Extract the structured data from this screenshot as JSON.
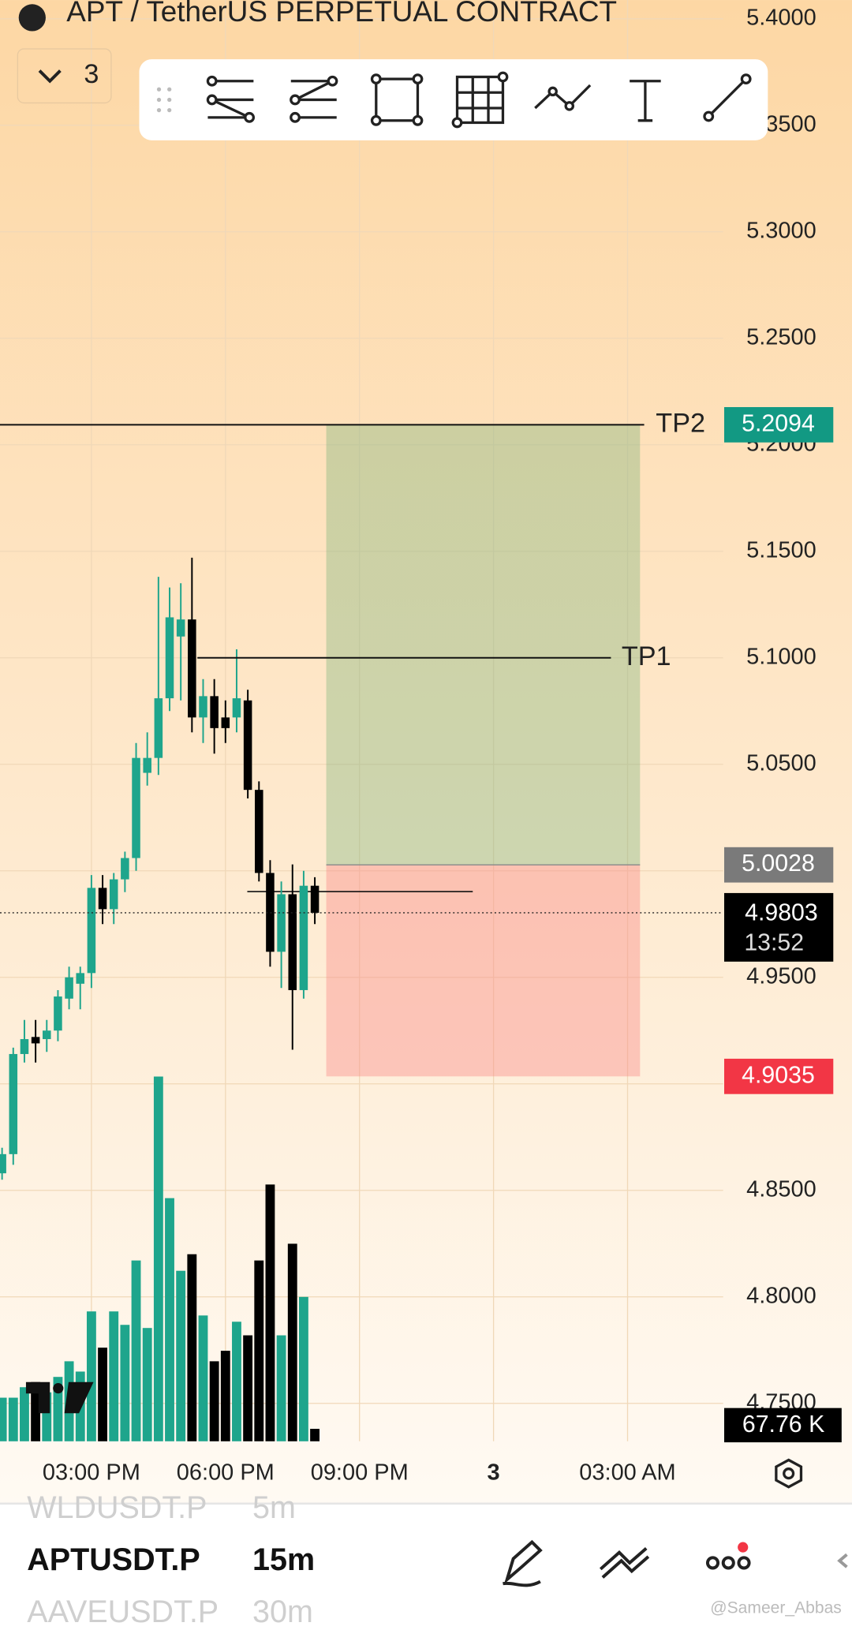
{
  "header": {
    "title": "APT / TetherUS PERPETUAL CONTRACT",
    "layout_count": "3"
  },
  "chart_data": {
    "type": "candlestick",
    "open": [
      4.858,
      4.867,
      4.914,
      4.922,
      4.921,
      4.925,
      4.94,
      4.947,
      4.952,
      4.992,
      4.982,
      4.996,
      5.006,
      5.046,
      5.053,
      5.081,
      5.11,
      5.118,
      5.072,
      5.082,
      5.072,
      5.072,
      5.08,
      5.038,
      4.999,
      4.962,
      4.989,
      4.944,
      4.993
    ],
    "high": [
      4.87,
      4.917,
      4.93,
      4.93,
      4.93,
      4.944,
      4.955,
      4.955,
      4.998,
      4.998,
      4.999,
      5.009,
      5.06,
      5.065,
      5.138,
      5.133,
      5.135,
      5.147,
      5.09,
      5.09,
      5.08,
      5.104,
      5.085,
      5.042,
      5.005,
      4.995,
      5.003,
      5.0,
      4.997
    ],
    "low": [
      4.855,
      4.862,
      4.91,
      4.91,
      4.915,
      4.92,
      4.935,
      4.935,
      4.945,
      4.975,
      4.975,
      4.99,
      5.0,
      5.04,
      5.045,
      5.075,
      5.08,
      5.065,
      5.06,
      5.055,
      5.06,
      5.065,
      5.034,
      4.995,
      4.955,
      4.945,
      4.916,
      4.94,
      4.975
    ],
    "close": [
      4.867,
      4.914,
      4.921,
      4.919,
      4.925,
      4.941,
      4.95,
      4.952,
      4.992,
      4.982,
      4.996,
      5.006,
      5.053,
      5.053,
      5.081,
      5.119,
      5.118,
      5.072,
      5.082,
      5.067,
      5.067,
      5.081,
      5.038,
      4.999,
      4.962,
      4.989,
      4.944,
      4.993,
      4.9803
    ],
    "volume": [
      237,
      237,
      294,
      322,
      266,
      350,
      435,
      379,
      706,
      509,
      706,
      633,
      983,
      616,
      1983,
      1322,
      927,
      1017,
      684,
      435,
      492,
      650,
      576,
      983,
      1396,
      576,
      1074,
      785,
      67.76
    ],
    "volume_value_labels": [
      null,
      null,
      null,
      null,
      null,
      null,
      null,
      null,
      null,
      null,
      null,
      null,
      null,
      null,
      null,
      null,
      null,
      null,
      null,
      null,
      null,
      null,
      null,
      null,
      null,
      null,
      null,
      null,
      "67.76 K"
    ],
    "up_color": "#1ea58c",
    "down_color": "#000000",
    "ylim": [
      4.7322,
      5.4088
    ],
    "yticks": [
      {
        "value": 5.4,
        "label": "5.4000"
      },
      {
        "value": 5.35,
        "label": "5.3500"
      },
      {
        "value": 5.3,
        "label": "5.3000"
      },
      {
        "value": 5.25,
        "label": "5.2500"
      },
      {
        "value": 5.2,
        "label": "5.2000"
      },
      {
        "value": 5.15,
        "label": "5.1500"
      },
      {
        "value": 5.1,
        "label": "5.1000"
      },
      {
        "value": 5.05,
        "label": "5.0500"
      },
      {
        "value": 5.0,
        "label": "5.0000"
      },
      {
        "value": 4.95,
        "label": "4.9500"
      },
      {
        "value": 4.9,
        "label": "4.9000"
      },
      {
        "value": 4.85,
        "label": "4.8500"
      },
      {
        "value": 4.8,
        "label": "4.8000"
      },
      {
        "value": 4.75,
        "label": "4.7500"
      }
    ],
    "xticks": [
      "03:00 PM",
      "06:00 PM",
      "09:00 PM",
      "3",
      "03:00 AM"
    ],
    "grid": true,
    "levels": [
      {
        "name": "TP2",
        "value": 5.2094
      },
      {
        "name": "TP1",
        "value": 5.1
      }
    ],
    "position": {
      "target": 5.2094,
      "entry": 5.0028,
      "stop": 4.9035
    },
    "last_price": 4.9803,
    "countdown": "13:52"
  },
  "watchlist": [
    {
      "symbol": "WLDUSDT.P",
      "interval": "5m"
    },
    {
      "symbol": "APTUSDT.P",
      "interval": "15m"
    },
    {
      "symbol": "AAVEUSDT.P",
      "interval": "30m"
    }
  ],
  "watermark": "@Sameer_Abbas"
}
